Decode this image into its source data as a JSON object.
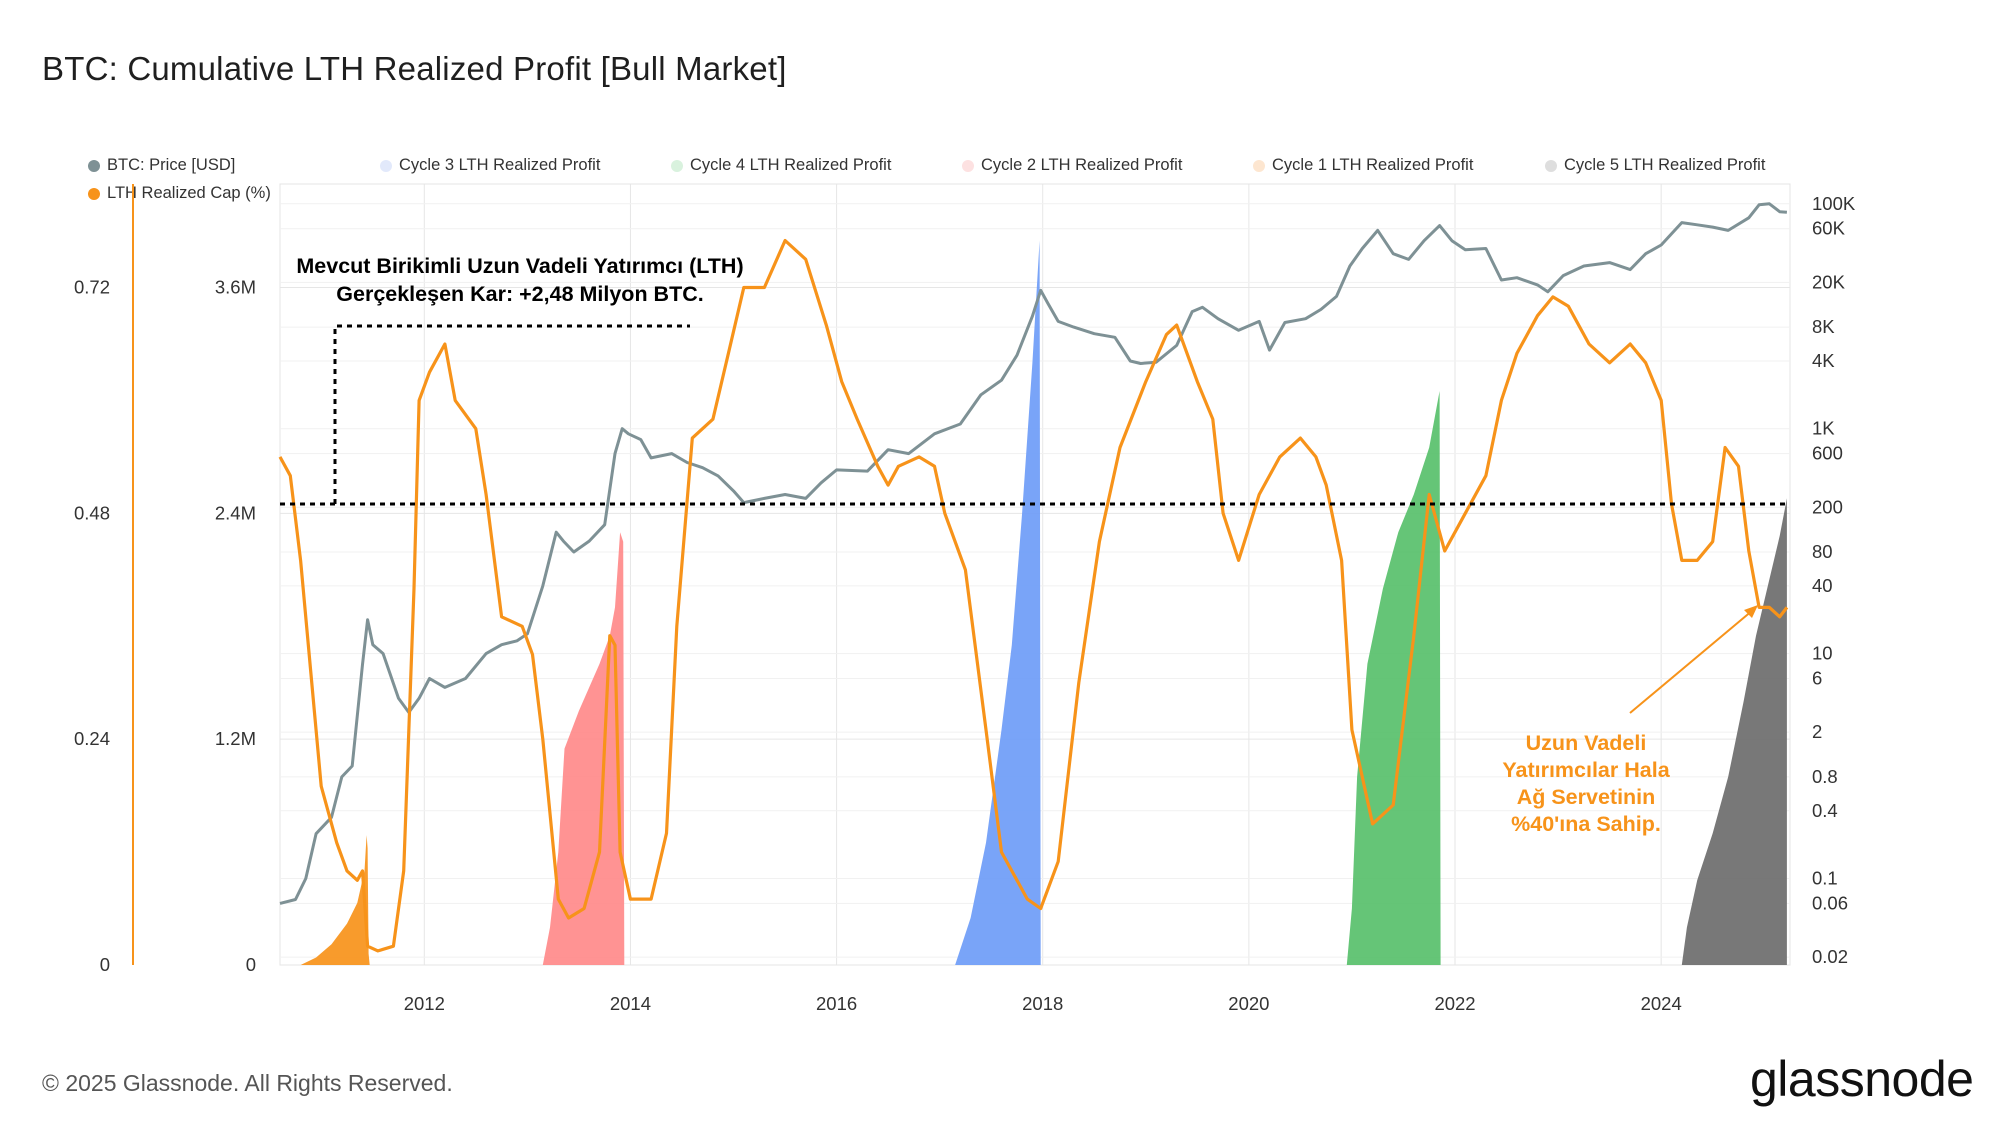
{
  "title": "BTC: Cumulative LTH Realized Profit [Bull Market]",
  "footer": "© 2025 Glassnode. All Rights Reserved.",
  "brand": "glassnode",
  "colors": {
    "price": "#7e9195",
    "lth_cap": "#f7931a",
    "cycle1": "#f7931a",
    "cycle2": "#ff8a8a",
    "cycle3": "#6e9cf7",
    "cycle4": "#58c06b",
    "cycle5": "#6d6d6d",
    "grid": "#e6e6e6"
  },
  "legend": [
    {
      "label": "BTC: Price [USD]",
      "dot": "#7e9195"
    },
    {
      "label": "Cycle 3 LTH Realized Profit",
      "dot": "#e2e9fb"
    },
    {
      "label": "Cycle 4 LTH Realized Profit",
      "dot": "#d9f2de"
    },
    {
      "label": "Cycle 2 LTH Realized Profit",
      "dot": "#fde1e1"
    },
    {
      "label": "Cycle 1 LTH Realized Profit",
      "dot": "#fde6d0"
    },
    {
      "label": "Cycle 5 LTH Realized Profit",
      "dot": "#dedede"
    },
    {
      "label": "LTH Realized Cap (%)",
      "dot": "#f7931a"
    }
  ],
  "annotations": {
    "top_line1": "Mevcut Birikimli Uzun Vadeli Yatırımcı (LTH)",
    "top_line2": "Gerçekleşen Kar: +2,48 Milyon BTC.",
    "orange_line1": "Uzun Vadeli",
    "orange_line2": "Yatırımcılar Hala",
    "orange_line3": "Ağ Servetinin",
    "orange_line4": "%40'ına Sahip."
  },
  "chart_data": {
    "type": "area",
    "title": "BTC: Cumulative LTH Realized Profit [Bull Market]",
    "x_range": [
      2010.6,
      2025.25
    ],
    "x_ticks": [
      "2012",
      "2014",
      "2016",
      "2018",
      "2020",
      "2022",
      "2024"
    ],
    "y_axes": {
      "lth_cap_pct": {
        "ticks": [
          "0",
          "0.24",
          "0.48",
          "0.72"
        ],
        "range": [
          0,
          0.83
        ]
      },
      "realized_profit_btc": {
        "ticks": [
          "0",
          "1.2M",
          "2.4M",
          "3.6M"
        ],
        "range": [
          0,
          4150000
        ]
      },
      "price_usd_log": {
        "ticks": [
          "0.02",
          "0.06",
          "0.1",
          "0.4",
          "0.8",
          "2",
          "6",
          "10",
          "40",
          "80",
          "200",
          "600",
          "1K",
          "4K",
          "8K",
          "20K",
          "60K",
          "100K"
        ],
        "range": [
          0.017,
          150000
        ]
      }
    },
    "reference_line": {
      "value": 2480000,
      "label": "2.48M BTC"
    },
    "series": [
      {
        "name": "Cycle 1 LTH Realized Profit",
        "axis": "realized_profit_btc",
        "points": [
          [
            2010.8,
            0
          ],
          [
            2010.95,
            40000
          ],
          [
            2011.1,
            110000
          ],
          [
            2011.25,
            220000
          ],
          [
            2011.35,
            330000
          ],
          [
            2011.42,
            500000
          ],
          [
            2011.44,
            690000
          ],
          [
            2011.45,
            620000
          ],
          [
            2011.46,
            60000
          ],
          [
            2011.47,
            0
          ]
        ]
      },
      {
        "name": "Cycle 2 LTH Realized Profit",
        "axis": "realized_profit_btc",
        "points": [
          [
            2013.15,
            0
          ],
          [
            2013.22,
            200000
          ],
          [
            2013.3,
            600000
          ],
          [
            2013.36,
            1150000
          ],
          [
            2013.5,
            1350000
          ],
          [
            2013.7,
            1600000
          ],
          [
            2013.8,
            1750000
          ],
          [
            2013.85,
            1900000
          ],
          [
            2013.9,
            2300000
          ],
          [
            2013.93,
            2250000
          ],
          [
            2013.94,
            0
          ]
        ]
      },
      {
        "name": "Cycle 3 LTH Realized Profit",
        "axis": "realized_profit_btc",
        "points": [
          [
            2017.15,
            0
          ],
          [
            2017.3,
            250000
          ],
          [
            2017.45,
            650000
          ],
          [
            2017.6,
            1250000
          ],
          [
            2017.7,
            1700000
          ],
          [
            2017.8,
            2400000
          ],
          [
            2017.9,
            3200000
          ],
          [
            2017.97,
            3850000
          ],
          [
            2017.98,
            0
          ]
        ]
      },
      {
        "name": "Cycle 4 LTH Realized Profit",
        "axis": "realized_profit_btc",
        "points": [
          [
            2020.95,
            0
          ],
          [
            2021.0,
            300000
          ],
          [
            2021.05,
            1000000
          ],
          [
            2021.15,
            1600000
          ],
          [
            2021.3,
            2000000
          ],
          [
            2021.45,
            2300000
          ],
          [
            2021.6,
            2500000
          ],
          [
            2021.75,
            2750000
          ],
          [
            2021.85,
            3050000
          ],
          [
            2021.86,
            0
          ]
        ]
      },
      {
        "name": "Cycle 5 LTH Realized Profit",
        "axis": "realized_profit_btc",
        "points": [
          [
            2024.2,
            0
          ],
          [
            2024.25,
            200000
          ],
          [
            2024.35,
            450000
          ],
          [
            2024.5,
            700000
          ],
          [
            2024.65,
            1000000
          ],
          [
            2024.8,
            1400000
          ],
          [
            2024.92,
            1750000
          ],
          [
            2025.05,
            2050000
          ],
          [
            2025.15,
            2280000
          ],
          [
            2025.22,
            2480000
          ]
        ]
      },
      {
        "name": "BTC: Price [USD]",
        "axis": "price_usd_log",
        "points": [
          [
            2010.6,
            0.06
          ],
          [
            2010.75,
            0.065
          ],
          [
            2010.85,
            0.1
          ],
          [
            2010.95,
            0.25
          ],
          [
            2011.1,
            0.35
          ],
          [
            2011.2,
            0.8
          ],
          [
            2011.3,
            1.0
          ],
          [
            2011.4,
            8
          ],
          [
            2011.45,
            20
          ],
          [
            2011.5,
            12
          ],
          [
            2011.6,
            10
          ],
          [
            2011.75,
            4
          ],
          [
            2011.85,
            3
          ],
          [
            2011.95,
            4
          ],
          [
            2012.05,
            6
          ],
          [
            2012.2,
            5
          ],
          [
            2012.4,
            6
          ],
          [
            2012.6,
            10
          ],
          [
            2012.75,
            12
          ],
          [
            2012.9,
            13
          ],
          [
            2013.0,
            15
          ],
          [
            2013.15,
            40
          ],
          [
            2013.28,
            120
          ],
          [
            2013.35,
            100
          ],
          [
            2013.45,
            80
          ],
          [
            2013.6,
            100
          ],
          [
            2013.75,
            140
          ],
          [
            2013.85,
            600
          ],
          [
            2013.92,
            1000
          ],
          [
            2013.98,
            900
          ],
          [
            2014.1,
            800
          ],
          [
            2014.2,
            550
          ],
          [
            2014.4,
            600
          ],
          [
            2014.55,
            500
          ],
          [
            2014.7,
            450
          ],
          [
            2014.85,
            380
          ],
          [
            2015.0,
            280
          ],
          [
            2015.1,
            220
          ],
          [
            2015.3,
            240
          ],
          [
            2015.5,
            260
          ],
          [
            2015.7,
            240
          ],
          [
            2015.85,
            330
          ],
          [
            2016.0,
            430
          ],
          [
            2016.3,
            420
          ],
          [
            2016.5,
            650
          ],
          [
            2016.7,
            600
          ],
          [
            2016.95,
            900
          ],
          [
            2017.2,
            1100
          ],
          [
            2017.4,
            2000
          ],
          [
            2017.6,
            2700
          ],
          [
            2017.75,
            4500
          ],
          [
            2017.9,
            10000
          ],
          [
            2017.98,
            17000
          ],
          [
            2018.05,
            13000
          ],
          [
            2018.15,
            9000
          ],
          [
            2018.3,
            8000
          ],
          [
            2018.5,
            7000
          ],
          [
            2018.7,
            6500
          ],
          [
            2018.85,
            4000
          ],
          [
            2018.95,
            3800
          ],
          [
            2019.1,
            3900
          ],
          [
            2019.3,
            5500
          ],
          [
            2019.45,
            11000
          ],
          [
            2019.55,
            12000
          ],
          [
            2019.7,
            9500
          ],
          [
            2019.9,
            7500
          ],
          [
            2020.1,
            9000
          ],
          [
            2020.2,
            5000
          ],
          [
            2020.35,
            8800
          ],
          [
            2020.55,
            9500
          ],
          [
            2020.7,
            11500
          ],
          [
            2020.85,
            15000
          ],
          [
            2020.98,
            28000
          ],
          [
            2021.1,
            40000
          ],
          [
            2021.25,
            58000
          ],
          [
            2021.4,
            36000
          ],
          [
            2021.55,
            32000
          ],
          [
            2021.7,
            47000
          ],
          [
            2021.85,
            64000
          ],
          [
            2021.97,
            47000
          ],
          [
            2022.1,
            39000
          ],
          [
            2022.3,
            40000
          ],
          [
            2022.45,
            21000
          ],
          [
            2022.6,
            22000
          ],
          [
            2022.8,
            19000
          ],
          [
            2022.9,
            16500
          ],
          [
            2023.05,
            23000
          ],
          [
            2023.25,
            28000
          ],
          [
            2023.5,
            30000
          ],
          [
            2023.7,
            26000
          ],
          [
            2023.85,
            36000
          ],
          [
            2024.0,
            43000
          ],
          [
            2024.2,
            68000
          ],
          [
            2024.35,
            65000
          ],
          [
            2024.5,
            62000
          ],
          [
            2024.65,
            58000
          ],
          [
            2024.85,
            75000
          ],
          [
            2024.95,
            98000
          ],
          [
            2025.05,
            100000
          ],
          [
            2025.15,
            85000
          ],
          [
            2025.22,
            84000
          ]
        ]
      },
      {
        "name": "LTH Realized Cap (%)",
        "axis": "lth_cap_pct",
        "points": [
          [
            2010.6,
            0.54
          ],
          [
            2010.7,
            0.52
          ],
          [
            2010.8,
            0.43
          ],
          [
            2010.9,
            0.31
          ],
          [
            2011.0,
            0.19
          ],
          [
            2011.15,
            0.13
          ],
          [
            2011.25,
            0.1
          ],
          [
            2011.35,
            0.09
          ],
          [
            2011.4,
            0.1
          ],
          [
            2011.45,
            0.02
          ],
          [
            2011.55,
            0.015
          ],
          [
            2011.7,
            0.02
          ],
          [
            2011.8,
            0.1
          ],
          [
            2011.9,
            0.4
          ],
          [
            2011.95,
            0.6
          ],
          [
            2012.05,
            0.63
          ],
          [
            2012.2,
            0.66
          ],
          [
            2012.3,
            0.6
          ],
          [
            2012.5,
            0.57
          ],
          [
            2012.6,
            0.5
          ],
          [
            2012.75,
            0.37
          ],
          [
            2012.95,
            0.36
          ],
          [
            2013.05,
            0.33
          ],
          [
            2013.15,
            0.24
          ],
          [
            2013.3,
            0.07
          ],
          [
            2013.4,
            0.05
          ],
          [
            2013.55,
            0.06
          ],
          [
            2013.7,
            0.12
          ],
          [
            2013.8,
            0.35
          ],
          [
            2013.85,
            0.34
          ],
          [
            2013.9,
            0.12
          ],
          [
            2014.0,
            0.07
          ],
          [
            2014.2,
            0.07
          ],
          [
            2014.35,
            0.14
          ],
          [
            2014.45,
            0.36
          ],
          [
            2014.6,
            0.56
          ],
          [
            2014.8,
            0.58
          ],
          [
            2014.95,
            0.65
          ],
          [
            2015.1,
            0.72
          ],
          [
            2015.3,
            0.72
          ],
          [
            2015.5,
            0.77
          ],
          [
            2015.7,
            0.75
          ],
          [
            2015.9,
            0.68
          ],
          [
            2016.05,
            0.62
          ],
          [
            2016.2,
            0.58
          ],
          [
            2016.4,
            0.53
          ],
          [
            2016.5,
            0.51
          ],
          [
            2016.6,
            0.53
          ],
          [
            2016.8,
            0.54
          ],
          [
            2016.95,
            0.53
          ],
          [
            2017.05,
            0.48
          ],
          [
            2017.25,
            0.42
          ],
          [
            2017.45,
            0.25
          ],
          [
            2017.6,
            0.12
          ],
          [
            2017.75,
            0.09
          ],
          [
            2017.85,
            0.07
          ],
          [
            2017.98,
            0.06
          ],
          [
            2018.15,
            0.11
          ],
          [
            2018.35,
            0.3
          ],
          [
            2018.55,
            0.45
          ],
          [
            2018.75,
            0.55
          ],
          [
            2019.0,
            0.62
          ],
          [
            2019.2,
            0.67
          ],
          [
            2019.3,
            0.68
          ],
          [
            2019.5,
            0.62
          ],
          [
            2019.65,
            0.58
          ],
          [
            2019.75,
            0.48
          ],
          [
            2019.9,
            0.43
          ],
          [
            2020.1,
            0.5
          ],
          [
            2020.3,
            0.54
          ],
          [
            2020.5,
            0.56
          ],
          [
            2020.65,
            0.54
          ],
          [
            2020.75,
            0.51
          ],
          [
            2020.9,
            0.43
          ],
          [
            2021.0,
            0.25
          ],
          [
            2021.2,
            0.15
          ],
          [
            2021.4,
            0.17
          ],
          [
            2021.6,
            0.35
          ],
          [
            2021.75,
            0.5
          ],
          [
            2021.9,
            0.44
          ],
          [
            2022.1,
            0.48
          ],
          [
            2022.3,
            0.52
          ],
          [
            2022.45,
            0.6
          ],
          [
            2022.6,
            0.65
          ],
          [
            2022.8,
            0.69
          ],
          [
            2022.95,
            0.71
          ],
          [
            2023.1,
            0.7
          ],
          [
            2023.3,
            0.66
          ],
          [
            2023.5,
            0.64
          ],
          [
            2023.7,
            0.66
          ],
          [
            2023.85,
            0.64
          ],
          [
            2024.0,
            0.6
          ],
          [
            2024.1,
            0.49
          ],
          [
            2024.2,
            0.43
          ],
          [
            2024.35,
            0.43
          ],
          [
            2024.5,
            0.45
          ],
          [
            2024.62,
            0.55
          ],
          [
            2024.75,
            0.53
          ],
          [
            2024.85,
            0.44
          ],
          [
            2024.95,
            0.38
          ],
          [
            2025.05,
            0.38
          ],
          [
            2025.15,
            0.37
          ],
          [
            2025.22,
            0.38
          ]
        ]
      }
    ]
  }
}
